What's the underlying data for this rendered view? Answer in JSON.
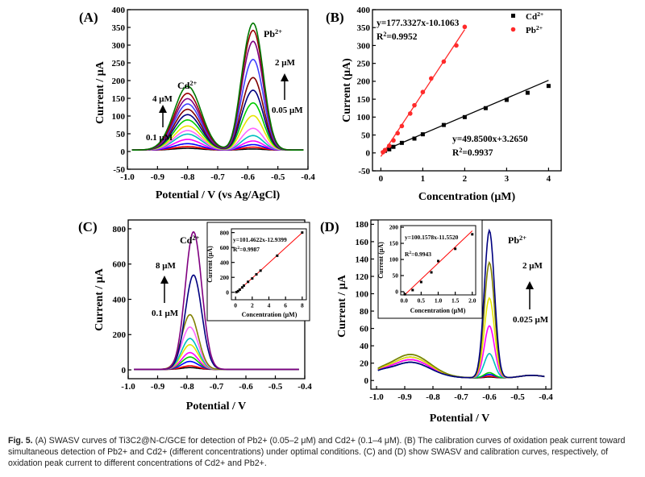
{
  "caption": {
    "label": "Fig. 5.",
    "text": "(A) SWASV curves of Ti3C2@N-C/GCE for detection of Pb2+ (0.05–2 μM) and Cd2+ (0.1–4 μM). (B) The calibration curves of oxidation peak current toward simultaneous detection of Pb2+ and Cd2+ (different concentrations) under optimal conditions. (C) and (D) show SWASV and calibration curves, respectively, of oxidation peak current to different concentrations of Cd2+ and Pb2+."
  },
  "chart_data": [
    {
      "panel": "(A)",
      "type": "line",
      "xlabel": "Potential / V (vs Ag/AgCl)",
      "ylabel": "Current / μA",
      "xlim": [
        -1.0,
        -0.4
      ],
      "ylim": [
        -50,
        400
      ],
      "xticks": [
        "-1.0",
        "-0.9",
        "-0.8",
        "-0.7",
        "-0.6",
        "-0.5",
        "-0.4"
      ],
      "yticks": [
        "-50",
        "0",
        "50",
        "100",
        "150",
        "200",
        "250",
        "300",
        "350",
        "400"
      ],
      "annotations": [
        "Cd2+",
        "4 μM",
        "0.1 μM",
        "Pb2+",
        "2 μM",
        "0.05 μM"
      ],
      "peaks": {
        "cd_potential": -0.8,
        "pb_potential": -0.58
      },
      "series": [
        {
          "color": "#000000",
          "cd_peak": 5,
          "pb_peak": 3
        },
        {
          "color": "#ff0000",
          "cd_peak": 10,
          "pb_peak": 8
        },
        {
          "color": "#0000ff",
          "cd_peak": 18,
          "pb_peak": 15
        },
        {
          "color": "#ff00ff",
          "cd_peak": 30,
          "pb_peak": 25
        },
        {
          "color": "#00bfbf",
          "cd_peak": 45,
          "pb_peak": 40
        },
        {
          "color": "#ff66ff",
          "cd_peak": 55,
          "pb_peak": 60
        },
        {
          "color": "#e6e600",
          "cd_peak": 68,
          "pb_peak": 95
        },
        {
          "color": "#00cc00",
          "cd_peak": 85,
          "pb_peak": 130
        },
        {
          "color": "#000080",
          "cd_peak": 100,
          "pb_peak": 165
        },
        {
          "color": "#800000",
          "cd_peak": 115,
          "pb_peak": 200
        },
        {
          "color": "#4040ff",
          "cd_peak": 130,
          "pb_peak": 250
        },
        {
          "color": "#800080",
          "cd_peak": 145,
          "pb_peak": 300
        },
        {
          "color": "#990000",
          "cd_peak": 160,
          "pb_peak": 330
        },
        {
          "color": "#007700",
          "cd_peak": 180,
          "pb_peak": 350
        }
      ]
    },
    {
      "panel": "(B)",
      "type": "scatter",
      "xlabel": "Concentration (μM)",
      "ylabel": "Current (μA)",
      "xlim": [
        -0.2,
        4.3
      ],
      "ylim": [
        -50,
        400
      ],
      "xticks": [
        "0",
        "1",
        "2",
        "3",
        "4"
      ],
      "yticks": [
        "-50",
        "0",
        "50",
        "100",
        "150",
        "200",
        "250",
        "300",
        "350",
        "400"
      ],
      "legend": "top-right",
      "series": [
        {
          "name": "Cd2+",
          "color": "#000000",
          "marker": "square",
          "equation": "y=49.8500x+3.2650",
          "r2_label": "R2=0.9937",
          "slope": 49.85,
          "intercept": 3.265,
          "x": [
            0.1,
            0.2,
            0.3,
            0.5,
            0.8,
            1.0,
            1.5,
            2.0,
            2.5,
            3.0,
            3.5,
            4.0
          ],
          "y": [
            6,
            10,
            17,
            28,
            40,
            52,
            78,
            100,
            125,
            148,
            168,
            187
          ]
        },
        {
          "name": "Pb2+",
          "color": "#ff2a2a",
          "marker": "circle",
          "equation": "y=177.3327x-10.1063",
          "r2_label": "R2=0.9952",
          "slope": 177.3327,
          "intercept": -10.1063,
          "x": [
            0.05,
            0.1,
            0.2,
            0.3,
            0.4,
            0.5,
            0.7,
            0.8,
            1.0,
            1.2,
            1.5,
            1.8,
            2.0
          ],
          "y": [
            2,
            8,
            20,
            35,
            55,
            75,
            110,
            133,
            170,
            208,
            255,
            300,
            352
          ]
        }
      ]
    },
    {
      "panel": "(C)",
      "type": "line",
      "xlabel": "Potential / V",
      "ylabel": "Current / μA",
      "xlim": [
        -1.0,
        -0.4
      ],
      "ylim": [
        -50,
        850
      ],
      "xticks": [
        "-1.0",
        "-0.9",
        "-0.8",
        "-0.7",
        "-0.6",
        "-0.5",
        "-0.4"
      ],
      "yticks": [
        "0",
        "200",
        "400",
        "600",
        "800"
      ],
      "annotations": [
        "Cd2+",
        "8 μM",
        "0.1 μM"
      ],
      "peak_potential": -0.79,
      "series": [
        {
          "color": "#000000",
          "peak": 10
        },
        {
          "color": "#ff0000",
          "peak": 20
        },
        {
          "color": "#0000ff",
          "peak": 45
        },
        {
          "color": "#00cc00",
          "peak": 70
        },
        {
          "color": "#ff00ff",
          "peak": 95
        },
        {
          "color": "#e6e600",
          "peak": 140
        },
        {
          "color": "#00bfbf",
          "peak": 175
        },
        {
          "color": "#ff66ff",
          "peak": 240
        },
        {
          "color": "#808000",
          "peak": 310
        },
        {
          "color": "#000080",
          "peak": 535
        },
        {
          "color": "#800080",
          "peak": 780
        }
      ],
      "inset": {
        "type": "scatter",
        "xlabel": "Concentration (μM)",
        "ylabel": "Current (μA)",
        "xlim": [
          -0.5,
          8.5
        ],
        "ylim": [
          -100,
          850
        ],
        "xticks": [
          "0",
          "2",
          "4",
          "6",
          "8"
        ],
        "yticks": [
          "0",
          "200",
          "400",
          "600",
          "800"
        ],
        "equation": "y=101.4622x-12.9399",
        "r2_label": "R2=0.9987",
        "slope": 101.4622,
        "intercept": -12.9399,
        "x": [
          0.1,
          0.3,
          0.5,
          0.8,
          1.0,
          1.5,
          2.0,
          2.5,
          3.0,
          5.0,
          8.0
        ],
        "y": [
          2,
          15,
          35,
          65,
          90,
          140,
          185,
          240,
          290,
          490,
          800
        ]
      }
    },
    {
      "panel": "(D)",
      "type": "line",
      "xlabel": "Potential / V",
      "ylabel": "Current / μA",
      "xlim": [
        -1.02,
        -0.38
      ],
      "ylim": [
        -10,
        185
      ],
      "xticks": [
        "-1.0",
        "-0.9",
        "-0.8",
        "-0.7",
        "-0.6",
        "-0.5",
        "-0.4"
      ],
      "yticks": [
        "0",
        "20",
        "40",
        "60",
        "80",
        "100",
        "120",
        "140",
        "160",
        "180"
      ],
      "annotations": [
        "Pb2+",
        "2 μM",
        "0.025 μM"
      ],
      "peak_potential": -0.6,
      "series": [
        {
          "color": "#000000",
          "peak": 1
        },
        {
          "color": "#ff0000",
          "peak": 2
        },
        {
          "color": "#0000ff",
          "peak": 4
        },
        {
          "color": "#00cc00",
          "peak": 6
        },
        {
          "color": "#00bfbf",
          "peak": 28
        },
        {
          "color": "#ff00ff",
          "peak": 60
        },
        {
          "color": "#e6e600",
          "peak": 92
        },
        {
          "color": "#808000",
          "peak": 133
        },
        {
          "color": "#000080",
          "peak": 170
        }
      ],
      "inset": {
        "type": "scatter",
        "xlabel": "Concentration (μM)",
        "ylabel": "Current (μA)",
        "xlim": [
          -0.1,
          2.1
        ],
        "ylim": [
          -10,
          205
        ],
        "xticks": [
          "0.0",
          "0.5",
          "1.0",
          "1.5",
          "2.0"
        ],
        "yticks": [
          "0",
          "50",
          "100",
          "150",
          "200"
        ],
        "equation": "y=100.1578x-11.5520",
        "r2_label": "R2=0.9943",
        "slope": 100.1578,
        "intercept": -11.552,
        "x": [
          0.025,
          0.25,
          0.5,
          0.8,
          1.0,
          1.5,
          2.0
        ],
        "y": [
          -8,
          5,
          30,
          60,
          95,
          133,
          178
        ]
      }
    }
  ]
}
